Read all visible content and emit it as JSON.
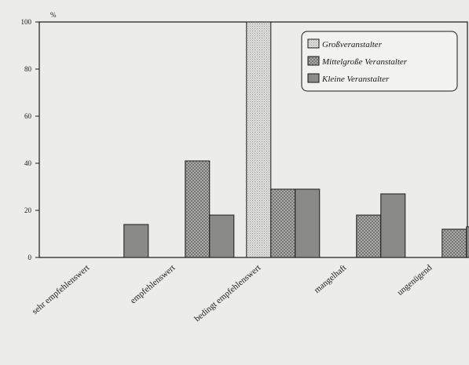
{
  "chart_data": {
    "type": "bar",
    "title": "",
    "xlabel": "",
    "ylabel": "%",
    "ylim": [
      0,
      100
    ],
    "yticks": [
      0,
      20,
      40,
      60,
      80,
      100
    ],
    "grid": false,
    "legend_position": "top-right",
    "categories": [
      "sehr empfehlenswert",
      "empfehlenswert",
      "bedingt empfehlenswert",
      "mangelhaft",
      "ungenügend"
    ],
    "series": [
      {
        "name": "Großveranstalter",
        "values": [
          0,
          0,
          100,
          0,
          0
        ],
        "fill": "#dcdcd8",
        "pattern": "fine-dots"
      },
      {
        "name": "Mittelgroße Veranstalter",
        "values": [
          0,
          41,
          29,
          18,
          12
        ],
        "fill": "#a9a9a6",
        "pattern": "crosshatch"
      },
      {
        "name": "Kleine Veranstalter",
        "values": [
          14,
          18,
          29,
          27,
          13
        ],
        "fill": "#878785",
        "pattern": "solid"
      }
    ]
  }
}
